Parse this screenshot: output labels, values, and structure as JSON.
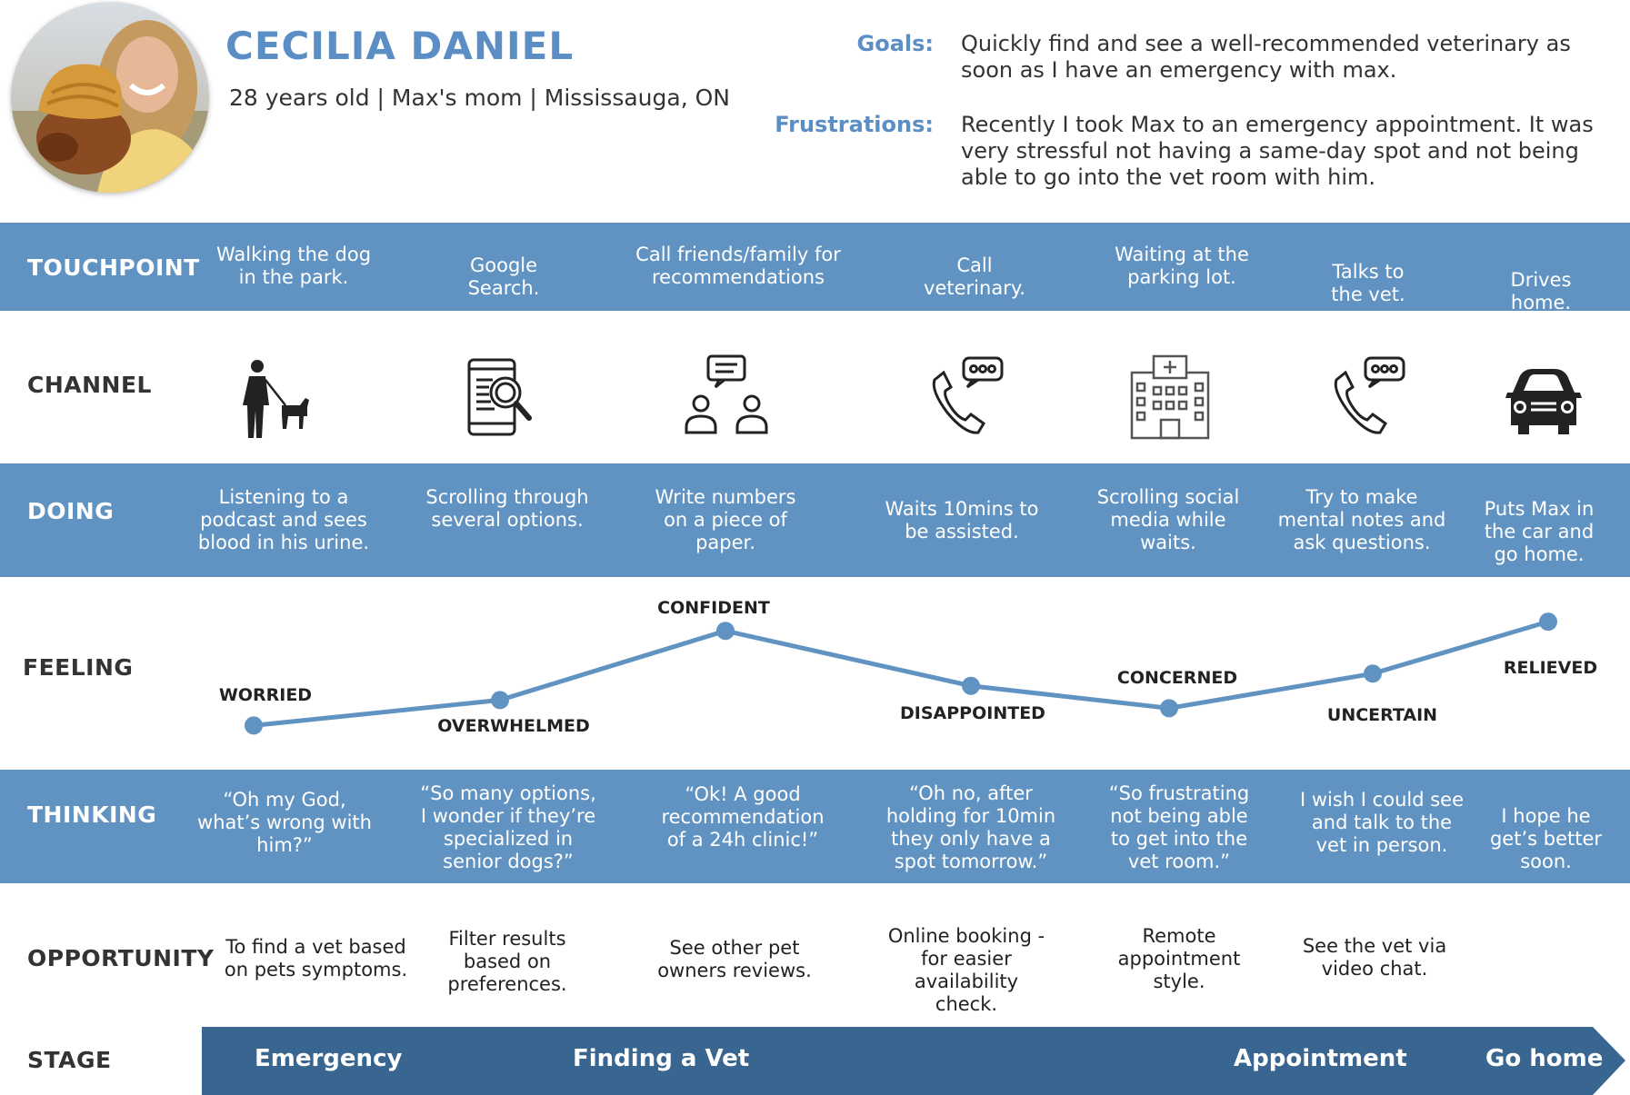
{
  "persona": {
    "name": "CECILIA DANIEL",
    "subtitle": "28 years old | Max's mom | Mississauga, ON",
    "goals_label": "Goals:",
    "goals_text": "Quickly find and see a well-recommended veterinary as soon as I have an emergency with max.",
    "frustrations_label": "Frustrations:",
    "frustrations_text": "Recently I took Max to an emergency appointment. It was very stressful not having a same-day spot and not being able to go into the vet room with him."
  },
  "rows": {
    "touchpoint": "TOUCHPOINT",
    "channel": "CHANNEL",
    "doing": "DOING",
    "feeling": "FEELING",
    "thinking": "THINKING",
    "opportunity": "OPPORTUNITY",
    "stage": "STAGE"
  },
  "touchpoints": [
    "Walking the dog in the park.",
    "Google Search.",
    "Call friends/family for recommendations",
    "Call veterinary.",
    "Waiting at the parking lot.",
    "Talks to the vet.",
    "Drives home."
  ],
  "channel_icons": [
    "person-walking-dog-icon",
    "tablet-search-icon",
    "people-chat-icon",
    "phone-chat-icon",
    "hospital-building-icon",
    "phone-chat-icon",
    "car-icon"
  ],
  "doing": [
    "Listening to a podcast and sees blood in his urine.",
    "Scrolling through several options.",
    "Write numbers on a piece of paper.",
    "Waits 10mins to be assisted.",
    "Scrolling social media while waits.",
    "Try to make mental notes and ask questions.",
    "Puts Max in the car and go home."
  ],
  "feelings": [
    {
      "label": "WORRIED",
      "level": 0.05
    },
    {
      "label": "OVERWHELMED",
      "level": 0.3
    },
    {
      "label": "CONFIDENT",
      "level": 0.98
    },
    {
      "label": "DISAPPOINTED",
      "level": 0.44
    },
    {
      "label": "CONCERNED",
      "level": 0.22
    },
    {
      "label": "UNCERTAIN",
      "level": 0.56
    },
    {
      "label": "RELIEVED",
      "level": 1.07
    }
  ],
  "thinking": [
    "“Oh my God, what’s wrong with him?”",
    "“So many options, I wonder if they’re specialized in senior dogs?”",
    "“Ok! A good recommendation of a 24h clinic!”",
    "“Oh no, after holding for 10min they only have a spot tomorrow.”",
    "“So frustrating not being able to get into the vet room.”",
    "I wish I could see and talk to the vet in person.",
    "I hope he get’s better soon."
  ],
  "opportunities": [
    "To find a vet based on pets symptoms.",
    "Filter results based on preferences.",
    "See other pet owners reviews.",
    "Online booking - for easier availability check.",
    "Remote appointment style.",
    "See the vet via video chat.",
    ""
  ],
  "stages": [
    "Emergency",
    "Finding a Vet",
    "Appointment",
    "Go home"
  ],
  "colors": {
    "band": "#6193c2",
    "stage": "#386691",
    "accent": "#5b8ec4",
    "line": "#6193c2"
  }
}
